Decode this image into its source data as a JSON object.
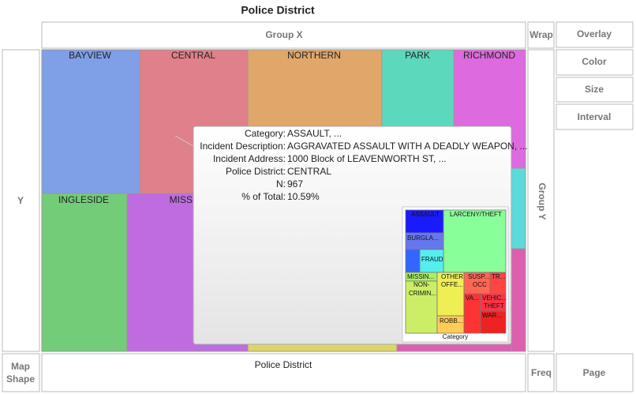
{
  "title": "Police District",
  "drop_zones": {
    "group_x": "Group X",
    "wrap": "Wrap",
    "overlay": "Overlay",
    "color": "Color",
    "size": "Size",
    "interval": "Interval",
    "y": "Y",
    "group_y": "Group Y",
    "map_shape": [
      "Map",
      "Shape"
    ],
    "x": "Police District",
    "freq": "Freq",
    "page": "Page"
  },
  "tiles": [
    "BAYVIEW",
    "CENTRAL",
    "NORTHERN",
    "PARK",
    "RICHMOND",
    "INGLESIDE",
    "MISSION"
  ],
  "tooltip": {
    "rows": [
      {
        "key": "Category:",
        "value": "ASSAULT, ..."
      },
      {
        "key": "Incident Description:",
        "value": "AGGRAVATED ASSAULT WITH A DEADLY WEAPON, ..."
      },
      {
        "key": "Incident Address:",
        "value": "1000 Block of LEAVENWORTH ST, ..."
      },
      {
        "key": "Police District:",
        "value": "CENTRAL"
      },
      {
        "key": "N:",
        "value": "967"
      },
      {
        "key": "% of Total:",
        "value": "10.59%"
      }
    ]
  },
  "mini_chart": {
    "labels": [
      [
        "ASSAULT"
      ],
      [
        "LARCENY/THEFT"
      ],
      [
        "BURGLA..."
      ],
      [
        "FRAUD"
      ],
      [
        "MISSIN..."
      ],
      [
        "NON-",
        "CRIMIN..."
      ],
      [
        "OTHER",
        "OFFE..."
      ],
      [
        "ROBB..."
      ],
      [
        "SUSP...",
        "OCC"
      ],
      [
        "TR..."
      ],
      [
        "VA..."
      ],
      [
        "VEHIC...",
        "THEFT"
      ],
      [
        "WAR..."
      ]
    ],
    "axis_label": "Category"
  }
}
